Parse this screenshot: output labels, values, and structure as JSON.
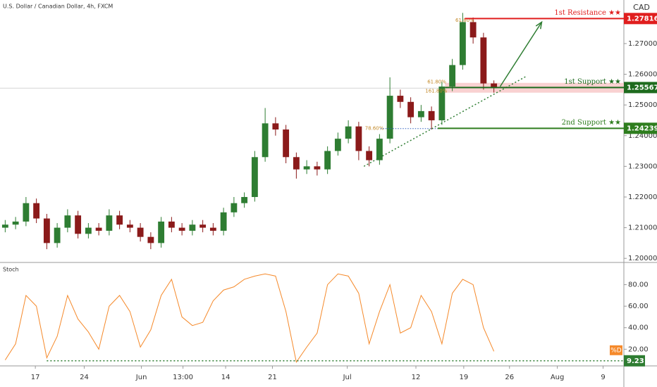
{
  "chart_data": {
    "type": "candlestick",
    "title": "U.S. Dollar / Canadian Dollar, 4h, FXCM",
    "currency": "CAD",
    "xlim": [
      -0.5,
      59.5
    ],
    "xticks": [
      {
        "value": 2.9,
        "label": "17"
      },
      {
        "value": 7.6,
        "label": "24"
      },
      {
        "value": 13.1,
        "label": "Jun"
      },
      {
        "value": 17.1,
        "label": "13:00"
      },
      {
        "value": 21.2,
        "label": "14"
      },
      {
        "value": 25.7,
        "label": "21"
      },
      {
        "value": 32.9,
        "label": "Jul"
      },
      {
        "value": 39.5,
        "label": "12"
      },
      {
        "value": 44.1,
        "label": "19"
      },
      {
        "value": 48.5,
        "label": "26"
      },
      {
        "value": 53.1,
        "label": "Aug"
      },
      {
        "value": 57.5,
        "label": "9"
      }
    ],
    "ylim": [
      1.1989,
      1.2842
    ],
    "yticks": [
      {
        "value": 1.2,
        "label": "1.20000"
      },
      {
        "value": 1.21,
        "label": "1.21000"
      },
      {
        "value": 1.22,
        "label": "1.22000"
      },
      {
        "value": 1.23,
        "label": "1.23000"
      },
      {
        "value": 1.24,
        "label": "1.24000"
      },
      {
        "value": 1.25,
        "label": "1.25000"
      },
      {
        "value": 1.26,
        "label": "1.26000"
      },
      {
        "value": 1.27,
        "label": "1.27000"
      }
    ],
    "up_color": "#2e7d32",
    "down_color": "#8b1a1a",
    "open": [
      1.21,
      1.211,
      1.212,
      1.218,
      1.213,
      1.205,
      1.21,
      1.214,
      1.208,
      1.21,
      1.209,
      1.214,
      1.211,
      1.21,
      1.207,
      1.205,
      1.212,
      1.21,
      1.209,
      1.211,
      1.21,
      1.209,
      1.215,
      1.218,
      1.22,
      1.233,
      1.244,
      1.242,
      1.233,
      1.229,
      1.23,
      1.229,
      1.235,
      1.239,
      1.243,
      1.235,
      1.232,
      1.239,
      1.253,
      1.251,
      1.246,
      1.248,
      1.245,
      1.256,
      1.263,
      1.277,
      1.272,
      1.257
    ],
    "high": [
      1.2125,
      1.2135,
      1.22,
      1.2195,
      1.2145,
      1.2115,
      1.216,
      1.2155,
      1.2115,
      1.2115,
      1.216,
      1.2155,
      1.2125,
      1.2115,
      1.2085,
      1.2135,
      1.2135,
      1.2115,
      1.2125,
      1.2125,
      1.2115,
      1.2165,
      1.22,
      1.2215,
      1.235,
      1.249,
      1.246,
      1.2435,
      1.2345,
      1.232,
      1.2315,
      1.2365,
      1.241,
      1.245,
      1.2445,
      1.2365,
      1.2405,
      1.259,
      1.255,
      1.2525,
      1.25,
      1.2495,
      1.2575,
      1.265,
      1.28,
      1.2785,
      1.2735,
      1.258
    ],
    "low": [
      1.2085,
      1.2095,
      1.2105,
      1.2115,
      1.203,
      1.2035,
      1.2085,
      1.2065,
      1.2065,
      1.2075,
      1.2075,
      1.2095,
      1.2085,
      1.2055,
      1.203,
      1.2035,
      1.2085,
      1.2075,
      1.2075,
      1.2085,
      1.2075,
      1.2075,
      1.2135,
      1.2165,
      1.2185,
      1.2315,
      1.24,
      1.231,
      1.226,
      1.2275,
      1.227,
      1.2275,
      1.2335,
      1.2375,
      1.232,
      1.23,
      1.2305,
      1.2375,
      1.249,
      1.244,
      1.2445,
      1.242,
      1.2435,
      1.2545,
      1.2615,
      1.27,
      1.255,
      1.254
    ],
    "close": [
      1.211,
      1.212,
      1.218,
      1.213,
      1.205,
      1.21,
      1.214,
      1.208,
      1.21,
      1.209,
      1.214,
      1.211,
      1.21,
      1.207,
      1.205,
      1.212,
      1.21,
      1.209,
      1.211,
      1.21,
      1.209,
      1.215,
      1.218,
      1.22,
      1.233,
      1.244,
      1.242,
      1.233,
      1.229,
      1.23,
      1.229,
      1.235,
      1.239,
      1.243,
      1.235,
      1.232,
      1.239,
      1.253,
      1.251,
      1.246,
      1.248,
      1.245,
      1.256,
      1.263,
      1.277,
      1.272,
      1.257,
      1.2555
    ],
    "levels": [
      {
        "name": "1st Resistance ★★",
        "value": 1.27816,
        "color": "#e01e1e",
        "start": 44.2
      },
      {
        "name": "1st Support ★★",
        "value": 1.25567,
        "color": "#1e6b1e",
        "start": 42.3
      },
      {
        "name": "2nd Support ★★",
        "value": 1.24239,
        "color": "#2e7d1e",
        "start": 41.6
      }
    ],
    "support_zone": [
      1.254,
      1.2572
    ],
    "fibs": [
      {
        "label": "61.80%",
        "value": 1.2775,
        "x": 43.3
      },
      {
        "label": "61.80%",
        "value": 1.2575,
        "x": 40.6
      },
      {
        "label": "161.80%",
        "value": 1.2545,
        "x": 40.4
      },
      {
        "label": "78.60%",
        "value": 1.2423,
        "x": 34.6
      }
    ],
    "trendline": {
      "x": [
        34.5,
        50.2
      ],
      "y": [
        1.23,
        1.2595
      ]
    },
    "arrow": {
      "x": [
        47.6,
        51.6
      ],
      "y": [
        1.256,
        1.277
      ]
    },
    "stoch": {
      "label": "Stoch",
      "name": "%D",
      "color": "#f5892a",
      "ylim": [
        4.5,
        100
      ],
      "yticks": [
        {
          "value": 20,
          "label": "20.00"
        },
        {
          "value": 40,
          "label": "40.00"
        },
        {
          "value": 60,
          "label": "60.00"
        },
        {
          "value": 80,
          "label": "80.00"
        }
      ],
      "values": [
        10,
        25,
        70,
        60,
        12,
        32,
        70,
        48,
        36,
        20,
        60,
        70,
        55,
        22,
        38,
        70,
        85,
        50,
        42,
        45,
        65,
        75,
        78,
        85,
        88,
        90,
        88,
        55,
        8,
        22,
        35,
        80,
        90,
        88,
        72,
        25,
        55,
        80,
        35,
        40,
        70,
        55,
        25,
        72,
        85,
        80,
        40,
        18
      ],
      "last": 9.23
    }
  }
}
